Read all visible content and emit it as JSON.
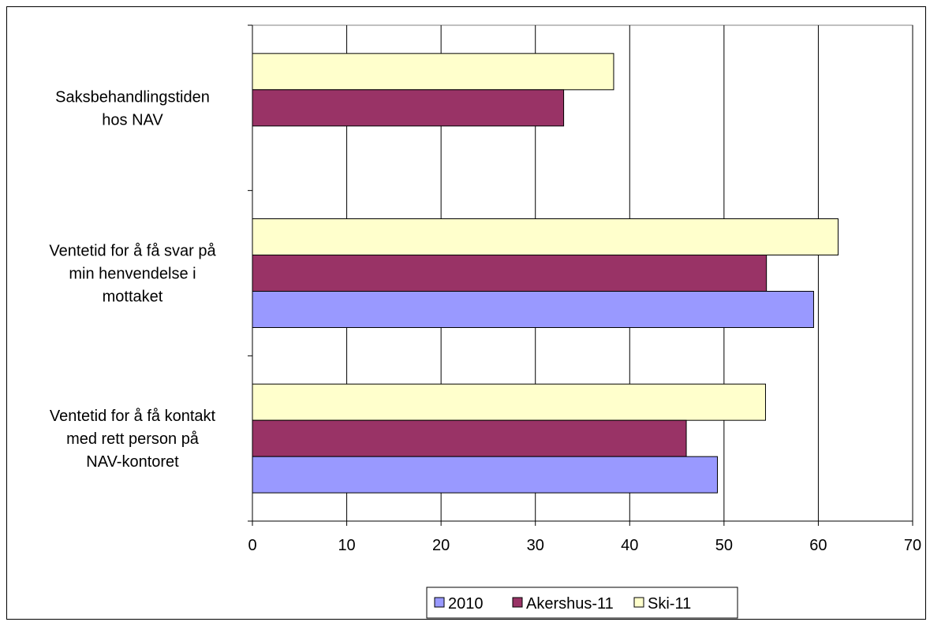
{
  "chart_data": {
    "type": "bar",
    "orientation": "horizontal",
    "categories": [
      [
        "Saksbehandlingstiden",
        "hos NAV"
      ],
      [
        "Ventetid for å få svar på",
        "min henvendelse i",
        "mottaket"
      ],
      [
        "Ventetid for å få kontakt",
        "med rett person på",
        "NAV-kontoret"
      ]
    ],
    "series": [
      {
        "name": "2010",
        "color": "#9999ff",
        "values": [
          null,
          59.5,
          49.3
        ]
      },
      {
        "name": "Akershus-11",
        "color": "#993366",
        "values": [
          33.0,
          54.5,
          46.0
        ]
      },
      {
        "name": "Ski-11",
        "color": "#ffffcc",
        "values": [
          38.3,
          62.1,
          54.4
        ]
      }
    ],
    "xlim": [
      0,
      70
    ],
    "xticks": [
      "0",
      "10",
      "20",
      "30",
      "40",
      "50",
      "60",
      "70"
    ],
    "grid": "vertical",
    "legend_position": "bottom"
  }
}
